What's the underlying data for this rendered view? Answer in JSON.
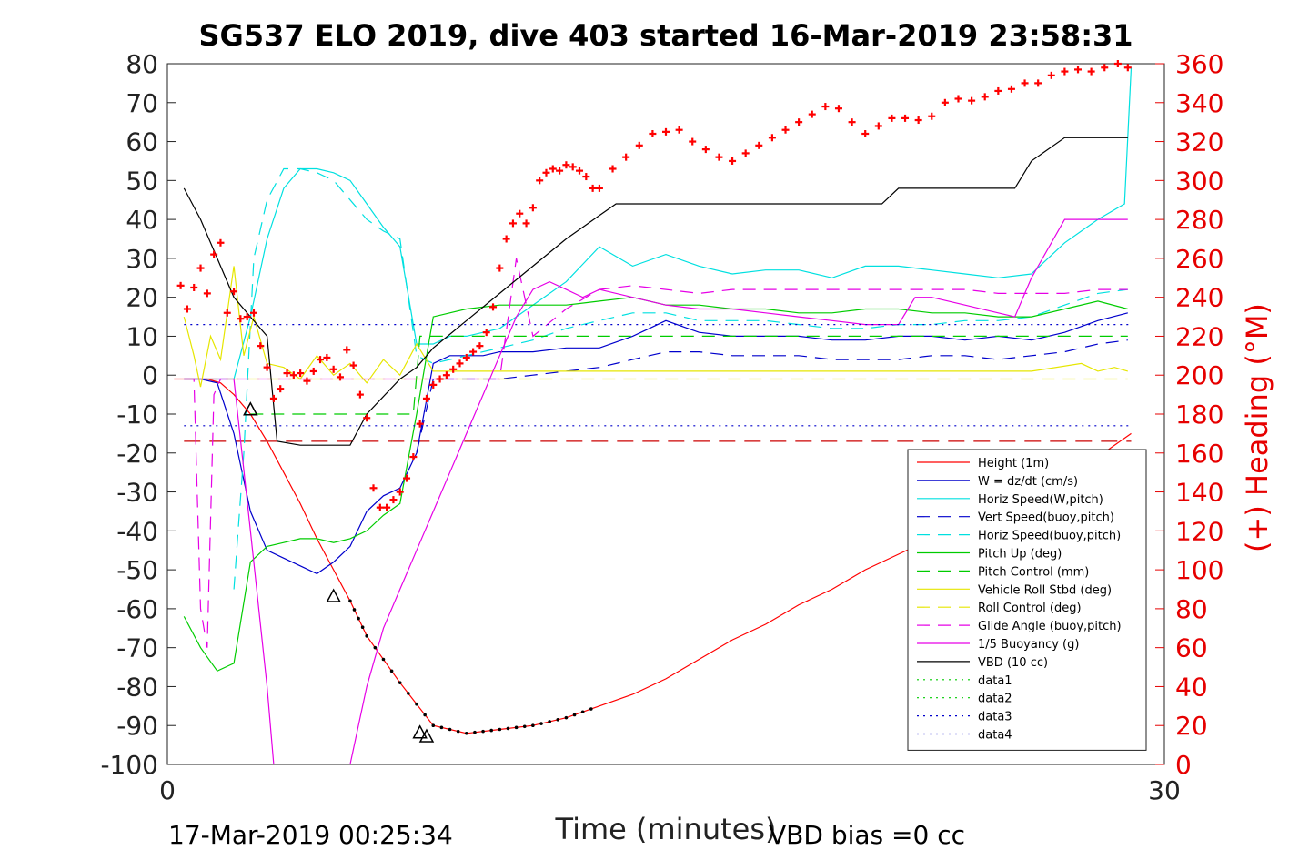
{
  "chart_data": {
    "type": "line",
    "title": "SG537 ELO 2019, dive 403 started 16-Mar-2019 23:58:31",
    "xlabel": "Time (minutes)",
    "ylabel": "",
    "y2label": "(+) Heading (°M)",
    "xlim": [
      0,
      30
    ],
    "ylim": [
      -100,
      80
    ],
    "y2lim": [
      0,
      360
    ],
    "x_ticks": [
      "0",
      "30"
    ],
    "y_ticks": [
      "80",
      "70",
      "60",
      "50",
      "40",
      "30",
      "20",
      "10",
      "0",
      "-10",
      "-20",
      "-30",
      "-40",
      "-50",
      "-60",
      "-70",
      "-80",
      "-90",
      "-100"
    ],
    "y2_ticks": [
      "360",
      "340",
      "320",
      "300",
      "280",
      "260",
      "240",
      "220",
      "200",
      "180",
      "160",
      "140",
      "120",
      "100",
      "80",
      "60",
      "40",
      "20",
      "0"
    ],
    "grid": false,
    "legend_position": "bottom-right",
    "footer_left": "17-Mar-2019 00:25:34",
    "footer_right": "VBD bias =0 cc",
    "series": [
      {
        "name": "Height (1m)",
        "color": "#ff0000",
        "dash": "solid",
        "x": [
          0.2,
          0.8,
          1.2,
          1.6,
          2.0,
          2.5,
          3.0,
          3.5,
          4.0,
          4.5,
          5.0,
          5.5,
          6.0,
          7.0,
          8.0,
          9.0,
          10.0,
          11.0,
          12.0,
          13.0,
          14.0,
          15.0,
          16.0,
          17.0,
          18.0,
          19.0,
          20.0,
          21.0,
          22.0,
          23.0,
          24.0,
          25.0,
          26.0,
          27.0,
          28.0,
          29.0
        ],
        "y": [
          -1,
          -1,
          -1,
          -2,
          -5,
          -10,
          -17,
          -25,
          -33,
          -42,
          -50,
          -58,
          -67,
          -79,
          -90,
          -92,
          -91,
          -90,
          -88,
          -85,
          -82,
          -78,
          -73,
          -68,
          -64,
          -59,
          -55,
          -50,
          -46,
          -42,
          -38,
          -33,
          -29,
          -24,
          -21,
          -15
        ]
      },
      {
        "name": "W = dz/dt (cm/s)",
        "color": "#0000cc",
        "dash": "solid",
        "x": [
          0.5,
          1.0,
          1.5,
          2.0,
          2.5,
          3.0,
          3.5,
          4.0,
          4.5,
          5.0,
          5.5,
          6.0,
          6.5,
          7.0,
          7.5,
          8.0,
          8.5,
          9.0,
          9.5,
          10.0,
          11.0,
          12.0,
          13.0,
          14.0,
          14.5,
          15.0,
          16.0,
          17.0,
          18.0,
          19.0,
          20.0,
          21.0,
          22.0,
          23.0,
          24.0,
          25.0,
          26.0,
          27.0,
          28.0,
          28.9
        ],
        "y": [
          -1,
          -1,
          -2,
          -15,
          -35,
          -45,
          -47,
          -49,
          -51,
          -48,
          -44,
          -35,
          -31,
          -29,
          -20,
          3,
          5,
          5,
          5,
          6,
          6,
          7,
          7,
          10,
          12,
          14,
          11,
          10,
          10,
          10,
          9,
          9,
          10,
          10,
          9,
          10,
          9,
          11,
          14,
          16
        ]
      },
      {
        "name": "Horiz Speed(W,pitch)",
        "color": "#00e0e0",
        "dash": "solid",
        "x": [
          0.5,
          1.0,
          1.5,
          2.0,
          2.5,
          3.0,
          3.5,
          4.0,
          4.5,
          5.0,
          5.5,
          6.0,
          6.5,
          7.0,
          7.5,
          8.0,
          8.5,
          9.0,
          9.5,
          10.0,
          11.0,
          12.0,
          13.0,
          14.0,
          15.0,
          16.0,
          17.0,
          18.0,
          19.0,
          20.0,
          21.0,
          22.0,
          23.0,
          24.0,
          25.0,
          26.0,
          27.0,
          28.0,
          28.8,
          29.0
        ],
        "y": [
          -1,
          -1,
          -1,
          -1,
          15,
          35,
          48,
          53,
          53,
          52,
          50,
          44,
          38,
          33,
          8,
          8,
          10,
          10,
          11,
          12,
          18,
          24,
          33,
          28,
          31,
          28,
          26,
          27,
          27,
          25,
          28,
          28,
          27,
          26,
          25,
          26,
          34,
          40,
          44,
          79
        ]
      },
      {
        "name": "Vert Speed(buoy,pitch)",
        "color": "#0000cc",
        "dash": "dash",
        "x": [
          7.5,
          8.0,
          9.0,
          10.0,
          11.0,
          12.0,
          13.0,
          14.0,
          15.0,
          16.0,
          17.0,
          18.0,
          19.0,
          20.0,
          21.0,
          22.0,
          23.0,
          24.0,
          25.0,
          26.0,
          27.0,
          28.0,
          28.9
        ],
        "y": [
          -20,
          -1,
          -1,
          -1,
          0,
          1,
          2,
          4,
          6,
          6,
          5,
          5,
          5,
          4,
          4,
          4,
          5,
          5,
          4,
          5,
          6,
          8,
          9
        ]
      },
      {
        "name": "Horiz Speed(buoy,pitch)",
        "color": "#00e0e0",
        "dash": "dash",
        "x": [
          2.0,
          2.3,
          2.6,
          3.0,
          3.5,
          4.0,
          4.5,
          5.0,
          5.5,
          6.0,
          6.5,
          7.0,
          7.5,
          8.0,
          9.0,
          10.0,
          11.0,
          12.0,
          13.0,
          14.0,
          15.0,
          16.0,
          17.0,
          18.0,
          19.0,
          20.0,
          21.0,
          22.0,
          23.0,
          24.0,
          25.0,
          26.0,
          27.0,
          28.0,
          28.9
        ],
        "y": [
          -55,
          -20,
          30,
          45,
          53,
          53,
          52,
          50,
          45,
          40,
          37,
          35,
          5,
          3,
          5,
          7,
          9,
          12,
          14,
          16,
          16,
          14,
          14,
          14,
          13,
          12,
          12,
          13,
          13,
          14,
          14,
          15,
          18,
          21,
          22
        ]
      },
      {
        "name": "Pitch Up (deg)",
        "color": "#00cc00",
        "dash": "solid",
        "x": [
          0.5,
          1.0,
          1.5,
          2.0,
          2.5,
          3.0,
          3.5,
          4.0,
          4.5,
          5.0,
          5.5,
          6.0,
          6.5,
          7.0,
          7.5,
          8.0,
          9.0,
          10.0,
          11.0,
          12.0,
          13.0,
          14.0,
          15.0,
          16.0,
          17.0,
          18.0,
          19.0,
          20.0,
          21.0,
          22.0,
          23.0,
          24.0,
          25.0,
          26.0,
          27.0,
          28.0,
          28.9
        ],
        "y": [
          -62,
          -70,
          -76,
          -74,
          -48,
          -44,
          -43,
          -42,
          -42,
          -43,
          -42,
          -40,
          -36,
          -33,
          -10,
          15,
          17,
          18,
          18,
          18,
          19,
          20,
          18,
          18,
          17,
          17,
          16,
          16,
          17,
          17,
          16,
          16,
          15,
          15,
          17,
          19,
          17
        ]
      },
      {
        "name": "Pitch Control (mm)",
        "color": "#00cc00",
        "dash": "dash",
        "x": [
          2.5,
          3.0,
          4.0,
          5.0,
          6.0,
          7.0,
          7.4,
          7.6,
          8.0,
          10.0,
          14.0,
          18.0,
          22.0,
          26.0,
          28.9
        ],
        "y": [
          -10,
          -10,
          -10,
          -10,
          -10,
          -10,
          -10,
          10,
          10,
          10,
          10,
          10,
          10,
          10,
          10
        ]
      },
      {
        "name": "Vehicle Roll Stbd (deg)",
        "color": "#e6e600",
        "dash": "solid",
        "x": [
          0.5,
          0.8,
          1.0,
          1.3,
          1.6,
          2.0,
          2.3,
          2.6,
          3.0,
          3.5,
          4.0,
          4.5,
          5.0,
          5.5,
          6.0,
          6.5,
          7.0,
          7.5,
          8.0,
          10.0,
          12.0,
          14.0,
          16.0,
          18.0,
          20.0,
          22.0,
          24.0,
          26.0,
          27.5,
          28.0,
          28.5,
          28.9
        ],
        "y": [
          15,
          5,
          -3,
          10,
          4,
          28,
          5,
          15,
          3,
          2,
          -1,
          5,
          0,
          3,
          -2,
          4,
          0,
          8,
          1,
          1,
          1,
          1,
          1,
          1,
          1,
          1,
          1,
          1,
          3,
          1,
          2,
          1
        ]
      },
      {
        "name": "Roll Control (deg)",
        "color": "#e6e600",
        "dash": "dash",
        "x": [
          0.5,
          1.0,
          2.0,
          3.0,
          4.0,
          6.0,
          8.0,
          10.0,
          14.0,
          18.0,
          22.0,
          26.0,
          28.9
        ],
        "y": [
          -1,
          -1,
          -1,
          -1,
          -1,
          -1,
          -1,
          -1,
          -1,
          -1,
          -1,
          -1,
          -1
        ]
      },
      {
        "name": "Glide Angle (buoy,pitch)",
        "color": "#e600e6",
        "dash": "dash",
        "x": [
          0.5,
          0.8,
          1.0,
          1.2,
          1.4,
          1.6,
          2.0,
          2.5,
          3.0,
          4.0,
          5.0,
          6.0,
          7.0,
          7.5,
          8.0,
          9.0,
          10.0,
          10.5,
          11.0,
          12.0,
          13.0,
          14.0,
          15.0,
          16.0,
          17.0,
          18.0,
          19.0,
          20.0,
          21.0,
          22.0,
          23.0,
          24.0,
          25.0,
          26.0,
          27.0,
          28.0,
          28.9
        ],
        "y": [
          -1,
          -1,
          -60,
          -70,
          -5,
          -1,
          -1,
          -1,
          -1,
          -1,
          -1,
          -1,
          -1,
          -1,
          -1,
          -1,
          -1,
          30,
          10,
          17,
          22,
          23,
          22,
          21,
          22,
          22,
          22,
          22,
          22,
          22,
          22,
          22,
          21,
          21,
          21,
          22,
          22
        ]
      },
      {
        "name": "1/5 Buoyancy (g)",
        "color": "#e600e6",
        "dash": "solid",
        "x": [
          0.5,
          1.0,
          1.5,
          2.0,
          2.5,
          3.0,
          3.2,
          5.5,
          6.0,
          6.5,
          7.0,
          7.5,
          8.0,
          8.5,
          9.0,
          9.5,
          10.0,
          10.5,
          11.0,
          11.5,
          12.0,
          12.5,
          13.0,
          14.0,
          15.0,
          16.0,
          17.0,
          18.0,
          19.0,
          20.0,
          21.0,
          22.0,
          22.5,
          23.0,
          24.0,
          25.0,
          25.5,
          26.0,
          27.0,
          28.0,
          28.9
        ],
        "y": [
          -1,
          -1,
          -1,
          -1,
          -40,
          -80,
          -100,
          -100,
          -80,
          -65,
          -55,
          -45,
          -35,
          -25,
          -15,
          -5,
          5,
          15,
          22,
          24,
          22,
          20,
          22,
          20,
          18,
          17,
          17,
          16,
          15,
          14,
          13,
          13,
          20,
          20,
          18,
          16,
          15,
          25,
          40,
          40,
          40
        ]
      },
      {
        "name": "VBD (10 cc)",
        "color": "#000000",
        "dash": "solid",
        "x": [
          0.5,
          1.0,
          1.5,
          2.0,
          2.5,
          3.0,
          3.3,
          4.0,
          5.0,
          5.5,
          6.0,
          7.0,
          7.5,
          8.0,
          9.0,
          10.0,
          11.0,
          12.0,
          13.0,
          13.5,
          14.0,
          15.0,
          16.0,
          17.0,
          18.0,
          19.0,
          20.0,
          21.0,
          21.5,
          22.0,
          23.0,
          24.0,
          25.0,
          25.5,
          26.0,
          27.0,
          28.0,
          28.9
        ],
        "y": [
          48,
          40,
          30,
          20,
          15,
          10,
          -17,
          -18,
          -18,
          -18,
          -10,
          -1,
          2,
          7,
          14,
          21,
          28,
          35,
          41,
          44,
          44,
          44,
          44,
          44,
          44,
          44,
          44,
          44,
          44,
          48,
          48,
          48,
          48,
          48,
          55,
          61,
          61,
          61
        ]
      },
      {
        "name": "data1",
        "color": "#00cc00",
        "dash": "dot",
        "x": [],
        "y": []
      },
      {
        "name": "data2",
        "color": "#00cc00",
        "dash": "dot",
        "x": [],
        "y": []
      },
      {
        "name": "data3",
        "color": "#0000cc",
        "dash": "dot",
        "x": [
          0.5,
          29.0
        ],
        "y": [
          -13,
          -13
        ]
      },
      {
        "name": "data4",
        "color": "#0000cc",
        "dash": "dot",
        "x": [
          0.5,
          29.0
        ],
        "y": [
          13,
          13
        ]
      }
    ],
    "reference_lines": [
      {
        "color": "#cc0000",
        "dash": "longdash",
        "x": [
          0.5,
          29.0
        ],
        "y": [
          -17,
          -17
        ]
      }
    ],
    "heading": {
      "color": "#ff0000",
      "marker": "+",
      "axis": "right",
      "x": [
        0.4,
        0.6,
        0.8,
        1.0,
        1.2,
        1.4,
        1.6,
        1.8,
        2.0,
        2.2,
        2.4,
        2.6,
        2.8,
        3.0,
        3.2,
        3.4,
        3.6,
        3.8,
        4.0,
        4.2,
        4.4,
        4.6,
        4.8,
        5.0,
        5.2,
        5.4,
        5.6,
        5.8,
        6.0,
        6.2,
        6.4,
        6.6,
        6.8,
        7.0,
        7.2,
        7.4,
        7.6,
        7.8,
        8.0,
        8.2,
        8.4,
        8.6,
        8.8,
        9.0,
        9.2,
        9.4,
        9.6,
        9.8,
        10.0,
        10.2,
        10.4,
        10.6,
        10.8,
        11.0,
        11.2,
        11.4,
        11.6,
        11.8,
        12.0,
        12.2,
        12.4,
        12.6,
        12.8,
        13.0,
        13.4,
        13.8,
        14.2,
        14.6,
        15.0,
        15.4,
        15.8,
        16.2,
        16.6,
        17.0,
        17.4,
        17.8,
        18.2,
        18.6,
        19.0,
        19.4,
        19.8,
        20.2,
        20.6,
        21.0,
        21.4,
        21.8,
        22.2,
        22.6,
        23.0,
        23.4,
        23.8,
        24.2,
        24.6,
        25.0,
        25.4,
        25.8,
        26.2,
        26.6,
        27.0,
        27.4,
        27.8,
        28.2,
        28.6,
        28.9
      ],
      "y": [
        246,
        234,
        245,
        255,
        242,
        262,
        268,
        232,
        243,
        229,
        230,
        232,
        215,
        204,
        188,
        193,
        201,
        200,
        201,
        197,
        202,
        208,
        209,
        203,
        199,
        213,
        205,
        190,
        178,
        142,
        132,
        132,
        136,
        140,
        147,
        158,
        175,
        188,
        195,
        198,
        200,
        203,
        206,
        209,
        212,
        215,
        222,
        235,
        255,
        270,
        278,
        283,
        278,
        286,
        300,
        304,
        306,
        305,
        308,
        307,
        305,
        302,
        296,
        296,
        306,
        312,
        318,
        324,
        325,
        326,
        320,
        316,
        312,
        310,
        314,
        318,
        322,
        326,
        330,
        334,
        338,
        337,
        330,
        324,
        328,
        332,
        332,
        331,
        333,
        340,
        342,
        341,
        343,
        346,
        347,
        350,
        350,
        354,
        356,
        357,
        356,
        358,
        360,
        358
      ]
    }
  }
}
